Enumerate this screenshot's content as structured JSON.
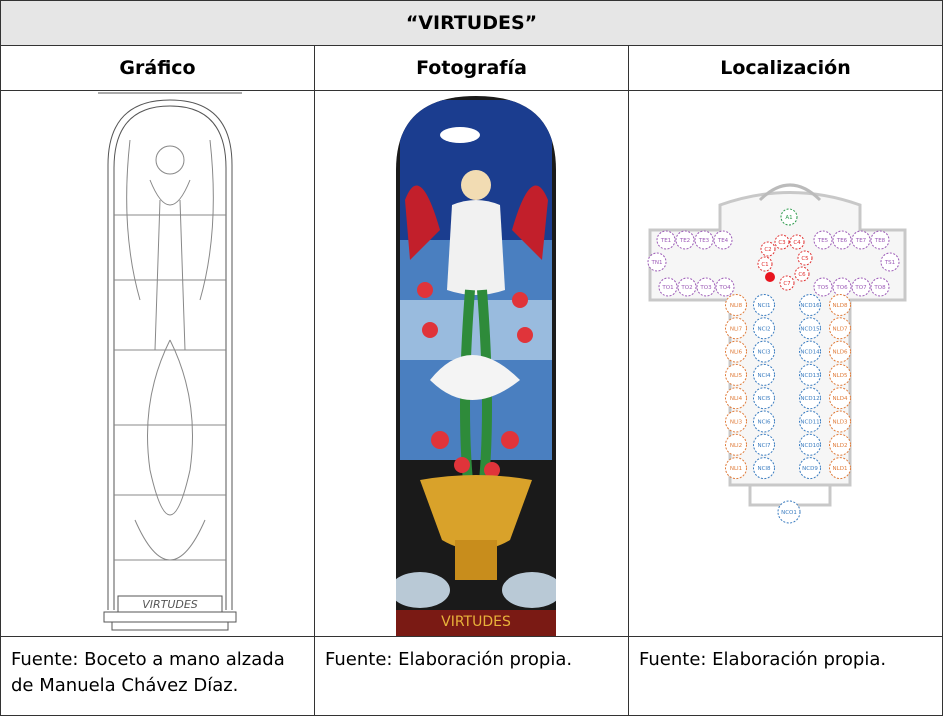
{
  "table": {
    "title": "“VIRTUDES”",
    "headers": [
      "Gráfico",
      "Fotografía",
      "Localización"
    ],
    "captions": [
      "Fuente: Boceto a mano alzada de Manuela Chávez Díaz.",
      "Fuente: Elaboración propia.",
      "Fuente: Elaboración propia."
    ]
  },
  "graphic": {
    "inscription": "VIRTUDES"
  },
  "photo": {
    "inscription": "VIRTUDES"
  },
  "plan": {
    "apse": "A1",
    "chapels": [
      "C1",
      "C2",
      "C3",
      "C4",
      "C5",
      "C6",
      "C7"
    ],
    "transept_top_left": [
      "TE1",
      "TE2",
      "TE3",
      "TE4"
    ],
    "transept_top_right": [
      "TE5",
      "TE6",
      "TE7",
      "TE8"
    ],
    "transept_north": "TN1",
    "transept_south": "TS1",
    "transept_bottom_left": [
      "TO1",
      "TO2",
      "TO3",
      "TO4"
    ],
    "transept_bottom_right": [
      "TO5",
      "TO6",
      "TO7",
      "TO8"
    ],
    "nave_left": [
      "NLI8",
      "NLI7",
      "NLI6",
      "NLI5",
      "NLI4",
      "NLI3",
      "NLI2",
      "NLI1"
    ],
    "nave_center_left": [
      "NCI1",
      "NCI2",
      "NCI3",
      "NCI4",
      "NCI5",
      "NCI6",
      "NCI7",
      "NCI8"
    ],
    "nave_center_right": [
      "NCD16",
      "NCD15",
      "NCD14",
      "NCD13",
      "NCD12",
      "NCD11",
      "NCD10",
      "NCD9"
    ],
    "nave_right": [
      "NLD8",
      "NLD7",
      "NLD6",
      "NLD5",
      "NLD4",
      "NLD3",
      "NLD2",
      "NLD1"
    ],
    "entrance": "NCO1"
  }
}
